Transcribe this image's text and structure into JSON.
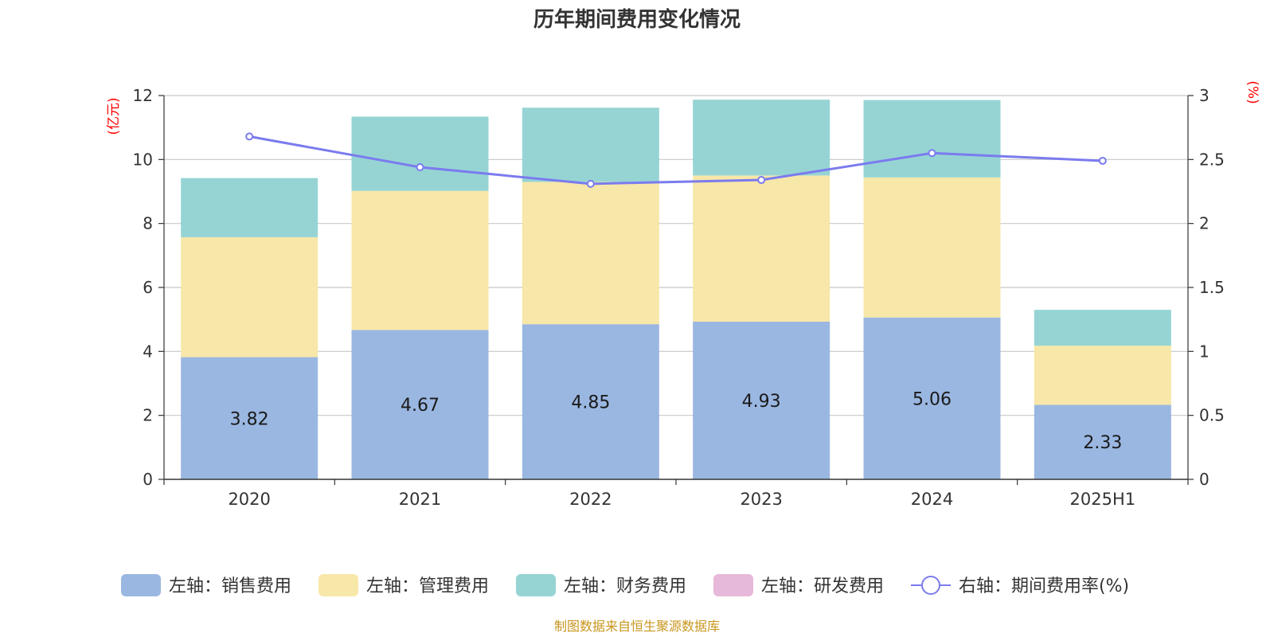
{
  "chart_data": {
    "type": "bar",
    "title": "历年期间费用变化情况",
    "categories": [
      "2020",
      "2021",
      "2022",
      "2023",
      "2024",
      "2025H1"
    ],
    "left_axis": {
      "unit": "(亿元)",
      "ylim": [
        0,
        12
      ],
      "ticks": [
        "0",
        "2",
        "4",
        "6",
        "8",
        "10",
        "12"
      ]
    },
    "right_axis": {
      "unit": "(%)",
      "ylim": [
        0,
        3
      ],
      "ticks": [
        "0",
        "0.5",
        "1",
        "1.5",
        "2",
        "2.5",
        "3"
      ]
    },
    "series": [
      {
        "name": "左轴：销售费用",
        "kind": "bar",
        "color": "#9ab7e1",
        "values": [
          3.82,
          4.67,
          4.85,
          4.93,
          5.06,
          2.33
        ],
        "labels": [
          "3.82",
          "4.67",
          "4.85",
          "4.93",
          "5.06",
          "2.33"
        ]
      },
      {
        "name": "左轴：管理费用",
        "kind": "bar",
        "color": "#f7e7a9",
        "values": [
          3.75,
          4.35,
          4.45,
          4.57,
          4.38,
          1.85
        ]
      },
      {
        "name": "左轴：财务费用",
        "kind": "bar",
        "color": "#96d4d4",
        "values": [
          1.85,
          2.32,
          2.32,
          2.37,
          2.42,
          1.12
        ]
      },
      {
        "name": "左轴：研发费用",
        "kind": "bar",
        "color": "#e6b8d9",
        "values": [
          0,
          0,
          0,
          0,
          0,
          0
        ]
      },
      {
        "name": "右轴：期间费用率(%)",
        "kind": "line",
        "color": "#7b7bee",
        "values": [
          2.68,
          2.44,
          2.31,
          2.34,
          2.55,
          2.49
        ]
      }
    ],
    "source": "制图数据来自恒生聚源数据库"
  }
}
